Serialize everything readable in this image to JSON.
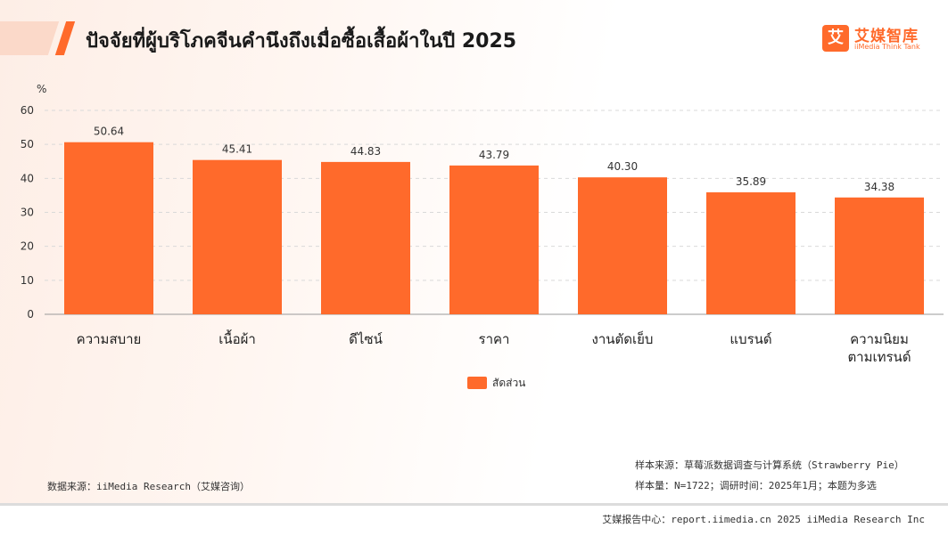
{
  "header": {
    "title": "ปัจจัยที่ผู้บริโภคจีนคำนึงถึงเมื่อซื้อเสื้อผ้าในปี 2025"
  },
  "logo": {
    "badge": "艾",
    "name": "艾媒智库",
    "subtitle": "iiMedia Think Tank"
  },
  "chart_data": {
    "type": "bar",
    "categories": [
      "ความสบาย",
      "เนื้อผ้า",
      "ดีไซน์",
      "ราคา",
      "งานตัดเย็บ",
      "แบรนด์",
      "ความนิยม|ตามเทรนด์"
    ],
    "series": [
      {
        "name": "สัดส่วน",
        "values": [
          50.64,
          45.41,
          44.83,
          43.79,
          40.3,
          35.89,
          34.38
        ],
        "color": "#ff6a2b"
      }
    ],
    "value_labels": [
      "50.64",
      "45.41",
      "44.83",
      "43.79",
      "40.30",
      "35.89",
      "34.38"
    ],
    "yunit": "%",
    "ylim": [
      0,
      60
    ],
    "yticks": [
      0,
      10,
      20,
      30,
      40,
      50,
      60
    ],
    "grid": true,
    "legend_position": "bottom"
  },
  "notes": {
    "data_source": "数据来源：iiMedia Research（艾媒咨询）",
    "sample_source": "样本来源：草莓派数据调查与计算系统（Strawberry Pie）",
    "sample_size": "样本量：N=1722；调研时间：2025年1月；本题为多选"
  },
  "footer": {
    "text": "艾媒报告中心：report.iimedia.cn 2025 iiMedia Research Inc"
  }
}
